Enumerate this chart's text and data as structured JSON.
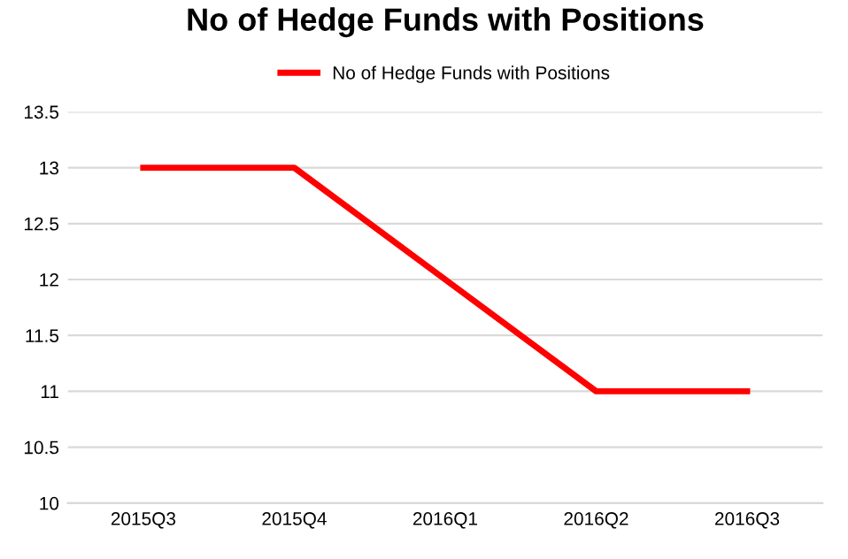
{
  "chart_data": {
    "type": "line",
    "title": "No of Hedge Funds with Positions",
    "categories": [
      "2015Q3",
      "2015Q4",
      "2016Q1",
      "2016Q2",
      "2016Q3"
    ],
    "series": [
      {
        "name": "No of Hedge Funds with Positions",
        "color": "#ff0000",
        "values": [
          13,
          13,
          12,
          11,
          11
        ]
      }
    ],
    "ylim": [
      10,
      13.5
    ],
    "yticks": [
      10,
      10.5,
      11,
      11.5,
      12,
      12.5,
      13,
      13.5
    ],
    "grid": "y",
    "legend": "top",
    "marker": "none",
    "line_style": "solid"
  }
}
